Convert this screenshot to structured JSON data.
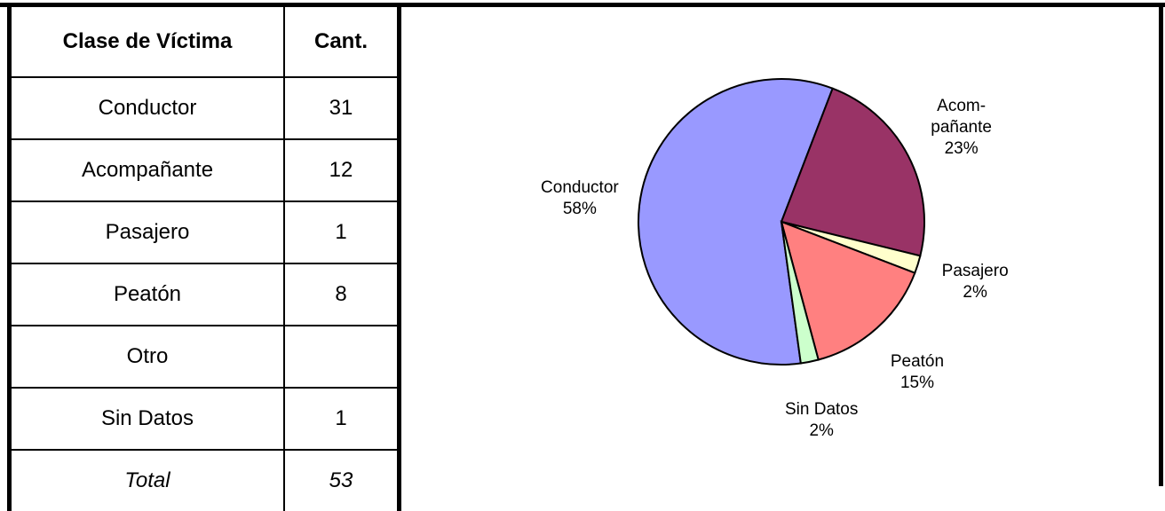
{
  "table": {
    "header": [
      "Clase de Víctima",
      "Cant."
    ],
    "rows": [
      [
        "Conductor",
        31
      ],
      [
        "Acompañante",
        12
      ],
      [
        "Pasajero",
        1
      ],
      [
        "Peatón",
        8
      ],
      [
        "Otro"
      ],
      [
        "Sin Datos",
        1
      ],
      [
        "Total",
        53
      ]
    ]
  },
  "chart_data": {
    "type": "pie",
    "categories": [
      "Conductor",
      "Acom-\npañante",
      "Pasajero",
      "Peatón",
      "Sin Datos"
    ],
    "values": [
      58,
      23,
      2,
      15,
      2
    ],
    "value_labels": [
      "58%",
      "23%",
      "2%",
      "15%",
      "2%"
    ],
    "colors": [
      "#9999ff",
      "#993366",
      "#ffffcc",
      "#ff8080",
      "#ccffcc"
    ]
  }
}
